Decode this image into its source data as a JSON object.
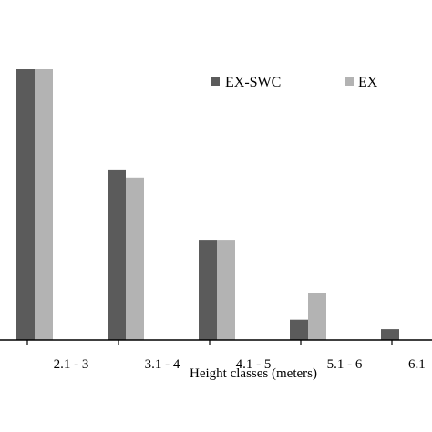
{
  "chart_data": {
    "type": "bar",
    "categories": [
      "2.1 - 3",
      "3.1 - 4",
      "4.1 - 5",
      "5.1 - 6",
      "6.1"
    ],
    "series": [
      {
        "name": "EX-SWC",
        "color": "#5b5b5b",
        "values": [
          100,
          63,
          37,
          7.5,
          4
        ]
      },
      {
        "name": "EX",
        "color": "#b3b3b3",
        "values": [
          100,
          60,
          37,
          17.5,
          0
        ]
      }
    ],
    "xlabel": "Height classes (meters)",
    "ylabel": "",
    "ylim": [
      0,
      100
    ],
    "grid": false,
    "legend_position": "top-right"
  }
}
